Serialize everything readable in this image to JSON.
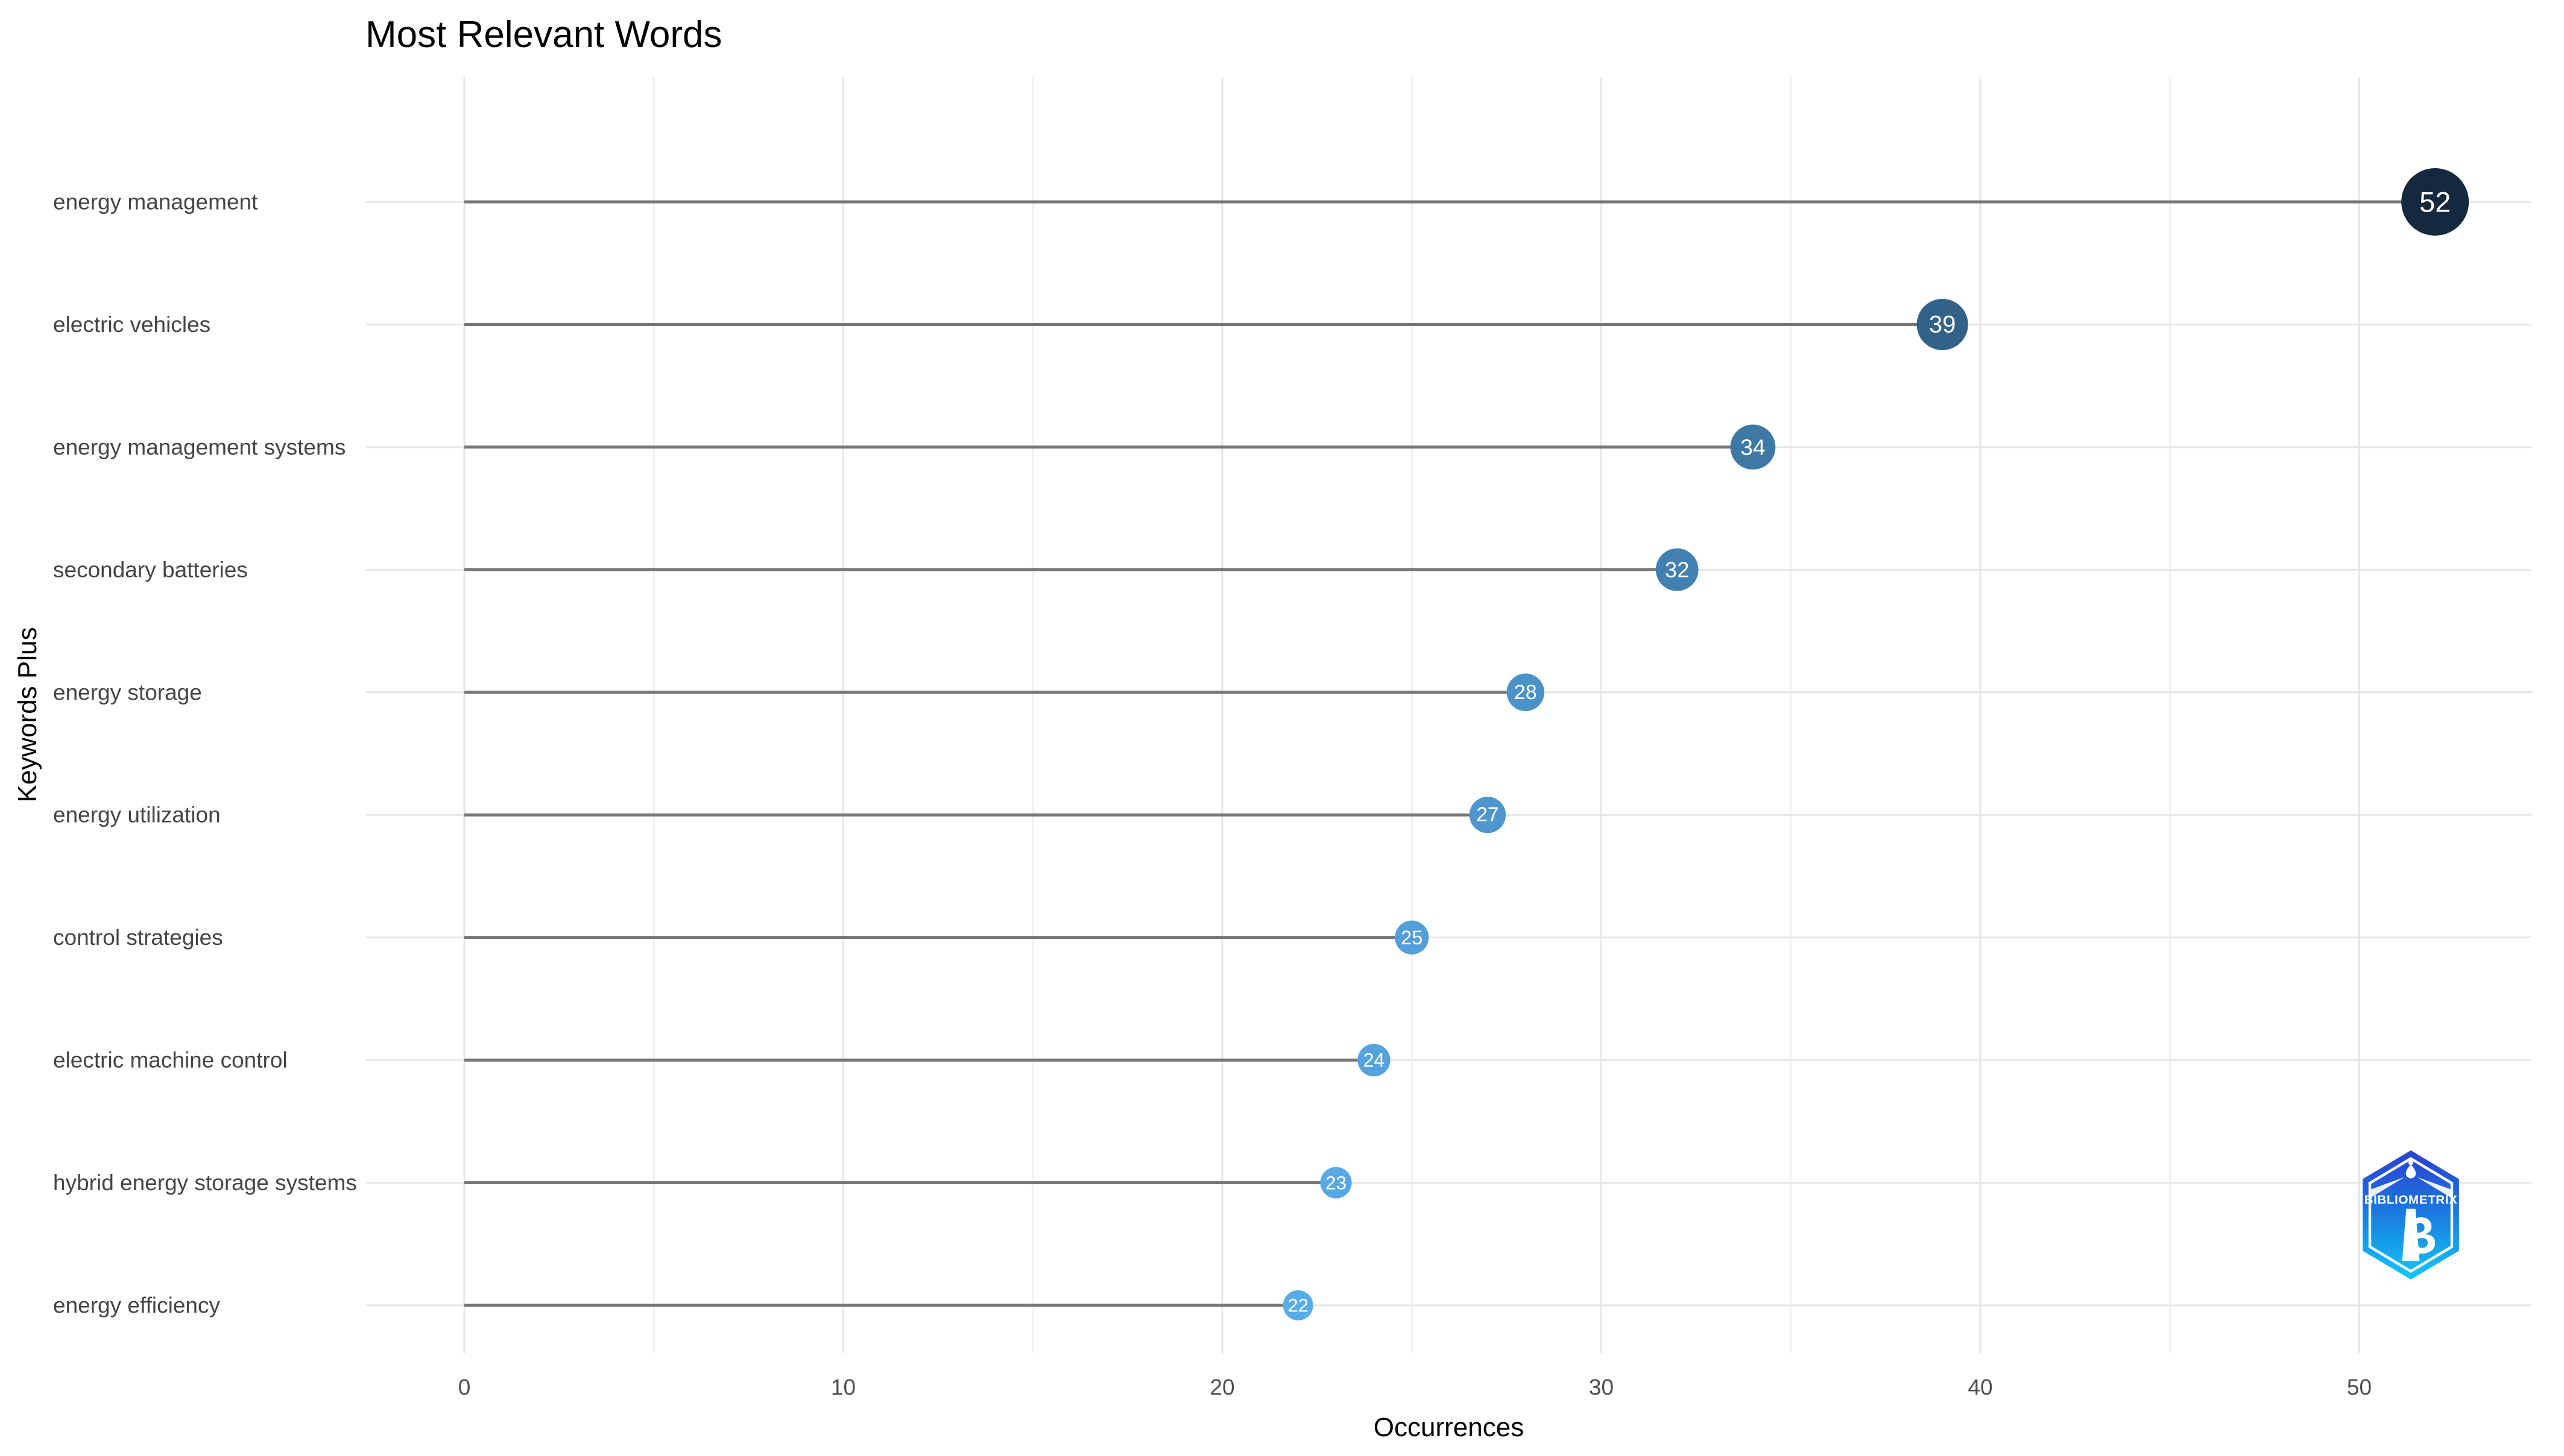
{
  "title": "Most Relevant Words",
  "x_axis_title": "Occurrences",
  "y_axis_title": "Keywords Plus",
  "chart_data": {
    "type": "lollipop",
    "orientation": "horizontal",
    "title": "Most Relevant Words",
    "xlabel": "Occurrences",
    "ylabel": "Keywords Plus",
    "categories": [
      "energy management",
      "electric vehicles",
      "energy management systems",
      "secondary batteries",
      "energy storage",
      "energy utilization",
      "control strategies",
      "electric machine control",
      "hybrid energy storage systems",
      "energy efficiency"
    ],
    "values": [
      52,
      39,
      34,
      32,
      28,
      27,
      25,
      24,
      23,
      22
    ],
    "x_ticks": [
      0,
      10,
      20,
      30,
      40,
      50
    ],
    "x_minor_ticks": [
      5,
      15,
      25,
      35,
      45
    ],
    "xlim": [
      0,
      52
    ],
    "grid": true,
    "legend": "none",
    "point_value_labels_shown": true,
    "colors": {
      "point_low": "#59ACEA",
      "point_high": "#15293E",
      "point_label": "#FFFFFF",
      "stem": "#777777",
      "grid_major": "#E6E6E6",
      "grid_minor": "#F0F0F0",
      "tick_label": "#4D4D4D",
      "category_label": "#454545",
      "title": "#000000"
    },
    "size_scale": {
      "min_value": 22,
      "max_value": 52,
      "min_diameter": 50,
      "max_diameter": 112
    }
  },
  "logo": {
    "label": "BIBLIOMETRIX"
  }
}
